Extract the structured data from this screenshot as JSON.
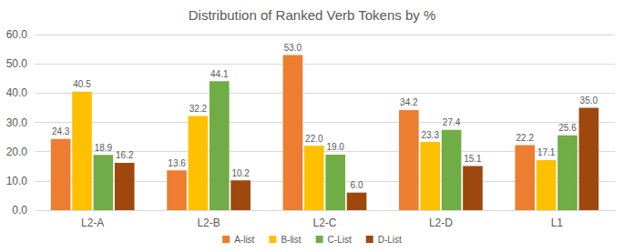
{
  "chart_data": {
    "type": "bar",
    "title": "Distribution of Ranked Verb Tokens by %",
    "categories": [
      "L2-A",
      "L2-B",
      "L2-C",
      "L2-D",
      "L1"
    ],
    "series": [
      {
        "name": "A-list",
        "color": "#ED7D31",
        "values": [
          24.3,
          13.6,
          53.0,
          34.2,
          22.2
        ],
        "value_labels": [
          "24.3",
          "13.6",
          "53.0",
          "34.2",
          "22.2"
        ]
      },
      {
        "name": "B-list",
        "color": "#FFC000",
        "values": [
          40.5,
          32.2,
          22.0,
          23.3,
          17.1
        ],
        "value_labels": [
          "40.5",
          "32.2",
          "22.0",
          "23.3",
          "17.1"
        ]
      },
      {
        "name": "C-List",
        "color": "#70AD47",
        "values": [
          18.9,
          44.1,
          19.0,
          27.4,
          25.6
        ],
        "value_labels": [
          "18.9",
          "44.1",
          "19.0",
          "27.4",
          "25.6"
        ]
      },
      {
        "name": "D-List",
        "color": "#9E480E",
        "values": [
          16.2,
          10.2,
          6.0,
          15.1,
          35.0
        ],
        "value_labels": [
          "16.2",
          "10.2",
          "6.0",
          "15.1",
          "35.0"
        ]
      }
    ],
    "ylim": [
      0,
      60
    ],
    "yticks": [
      {
        "value": 0,
        "label": "0.0"
      },
      {
        "value": 10,
        "label": "10.0"
      },
      {
        "value": 20,
        "label": "20.0"
      },
      {
        "value": 30,
        "label": "30.0"
      },
      {
        "value": 40,
        "label": "40.0"
      },
      {
        "value": 50,
        "label": "50.0"
      },
      {
        "value": 60,
        "label": "60.0"
      }
    ],
    "grid": true,
    "legend": "bottom",
    "data_labels": true
  }
}
